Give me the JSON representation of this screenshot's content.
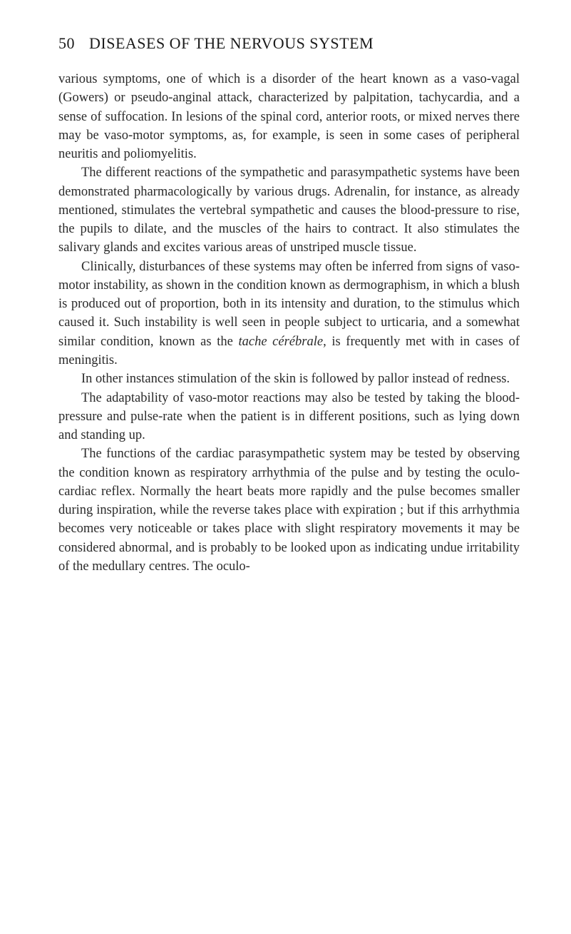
{
  "header": {
    "page_number": "50",
    "title": "DISEASES OF THE NERVOUS SYSTEM"
  },
  "paragraphs": {
    "p1": "various symptoms, one of which is a disorder of the heart known as a vaso-vagal (Gowers) or pseudo-anginal attack, characterized by palpitation, tachycardia, and a sense of suffocation. In lesions of the spinal cord, anterior roots, or mixed nerves there may be vaso-motor symptoms, as, for example, is seen in some cases of peripheral neuritis and poliomyelitis.",
    "p2": "The different reactions of the sympathetic and para­sympathetic systems have been demonstrated pharmaco­logically by various drugs. Adrenalin, for instance, as already mentioned, stimulates the vertebral sympathetic and causes the blood-pressure to rise, the pupils to dilate, and the muscles of the hairs to contract. It also stimu­lates the salivary glands and excites various areas of unstriped muscle tissue.",
    "p3_part1": "Clinically, disturbances of these systems may often be inferred from signs of vaso-motor instability, as shown in the condition known as dermographism, in which a blush is produced out of proportion, both in its intensity and duration, to the stimulus which caused it. Such instability is well seen in people subject to urticaria, and a somewhat similar condition, known as the ",
    "p3_italic": "tache cérébrale",
    "p3_part2": ", is frequently met with in cases of meningitis.",
    "p4": "In other instances stimulation of the skin is followed by pallor instead of redness.",
    "p5": "The adaptability of vaso-motor reactions may also be tested by taking the blood-pressure and pulse-rate when the patient is in different positions, such as lying down and standing up.",
    "p6": "The functions of the cardiac parasympathetic system may be tested by observing the condition known as re­spiratory arrhythmia of the pulse and by testing the oculo-cardiac reflex. Normally the heart beats more rapidly and the pulse becomes smaller during inspiration, while the reverse takes place with expiration ; but if this arrhythmia becomes very noticeable or takes place with slight respiratory movements it may be considered abnormal, and is probably to be looked upon as indicating undue irritability of the medullary centres. The oculo-"
  }
}
